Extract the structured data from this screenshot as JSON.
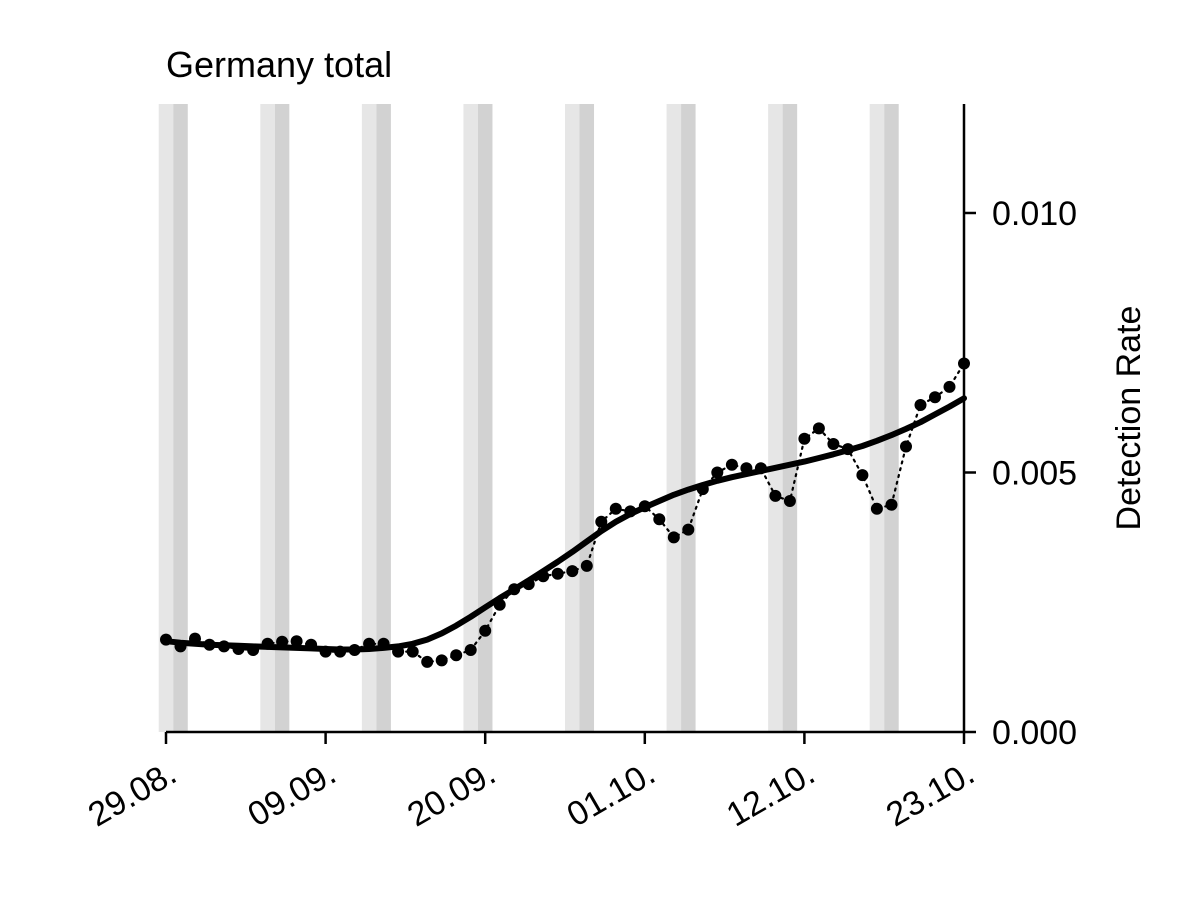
{
  "chart_data": {
    "type": "line",
    "title": "Germany total",
    "xlabel": "",
    "ylabel": "Detection Rate",
    "x_range": [
      "2020-08-29",
      "2020-10-23"
    ],
    "ylim": [
      0.0,
      0.0121
    ],
    "y_ticks": [
      "0.000",
      "0.005",
      "0.010"
    ],
    "x_tick_dates": [
      "2020-08-29",
      "2020-09-09",
      "2020-09-20",
      "2020-10-01",
      "2020-10-12",
      "2020-10-23"
    ],
    "x_tick_labels": [
      "29.08.",
      "09.09.",
      "20.09.",
      "01.10.",
      "12.10.",
      "23.10."
    ],
    "grid": false,
    "y_axis_side": "right",
    "weekend_bands": [
      {
        "sat": "2020-08-29",
        "sun": "2020-08-30"
      },
      {
        "sat": "2020-09-05",
        "sun": "2020-09-06"
      },
      {
        "sat": "2020-09-12",
        "sun": "2020-09-13"
      },
      {
        "sat": "2020-09-19",
        "sun": "2020-09-20"
      },
      {
        "sat": "2020-09-26",
        "sun": "2020-09-27"
      },
      {
        "sat": "2020-10-03",
        "sun": "2020-10-04"
      },
      {
        "sat": "2020-10-10",
        "sun": "2020-10-11"
      },
      {
        "sat": "2020-10-17",
        "sun": "2020-10-18"
      }
    ],
    "series": [
      {
        "style": "dotted-markers",
        "color": "#000000",
        "x_start": "2020-08-29",
        "values": [
          0.00178,
          0.00165,
          0.0018,
          0.00168,
          0.00165,
          0.0016,
          0.00158,
          0.0017,
          0.00174,
          0.00175,
          0.00168,
          0.00155,
          0.00155,
          0.00158,
          0.0017,
          0.0017,
          0.00155,
          0.00155,
          0.00135,
          0.00138,
          0.00148,
          0.00158,
          0.00195,
          0.00245,
          0.00275,
          0.00285,
          0.003,
          0.00305,
          0.0031,
          0.0032,
          0.00405,
          0.0043,
          0.00425,
          0.00435,
          0.0041,
          0.00375,
          0.0039,
          0.00468,
          0.005,
          0.00515,
          0.00508,
          0.00508,
          0.00455,
          0.00445,
          0.00565,
          0.00585,
          0.00555,
          0.00545,
          0.00495,
          0.0043,
          0.00438,
          0.0055,
          0.0063,
          0.00645,
          0.00665,
          0.0071
        ]
      },
      {
        "style": "smooth",
        "color": "#000000",
        "x_start": "2020-08-29",
        "values": [
          0.00175,
          0.00172,
          0.0017,
          0.00168,
          0.00167,
          0.00166,
          0.00165,
          0.00164,
          0.00163,
          0.00162,
          0.00161,
          0.0016,
          0.00159,
          0.00159,
          0.0016,
          0.00162,
          0.00165,
          0.0017,
          0.00178,
          0.0019,
          0.00205,
          0.00222,
          0.0024,
          0.00258,
          0.00275,
          0.00292,
          0.0031,
          0.00328,
          0.00347,
          0.00367,
          0.00387,
          0.00405,
          0.0042,
          0.00433,
          0.00445,
          0.00457,
          0.00467,
          0.00476,
          0.00484,
          0.00491,
          0.00497,
          0.00503,
          0.00509,
          0.00515,
          0.00521,
          0.00528,
          0.00535,
          0.00543,
          0.00551,
          0.00561,
          0.00572,
          0.00584,
          0.00597,
          0.00612,
          0.00627,
          0.00643
        ]
      }
    ]
  }
}
